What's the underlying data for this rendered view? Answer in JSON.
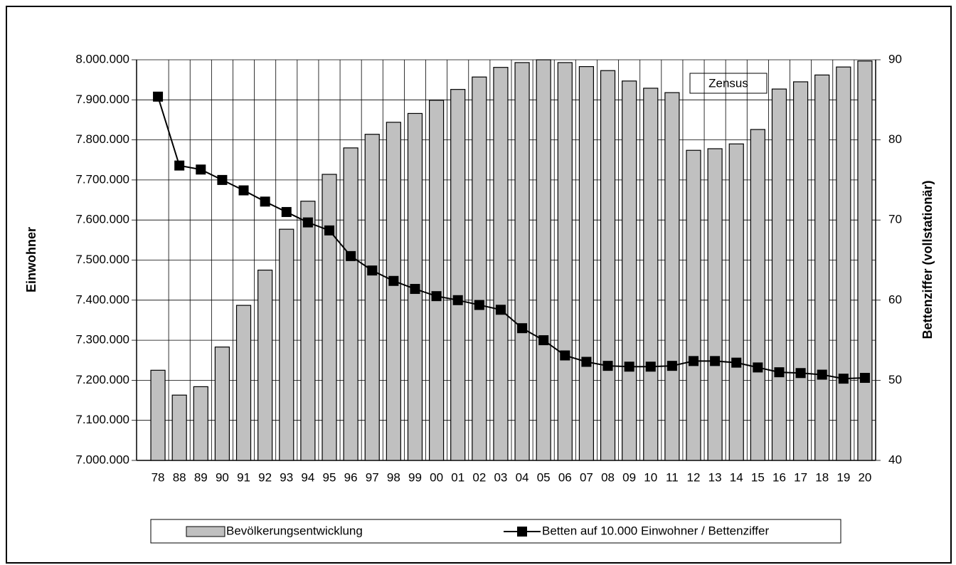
{
  "chart_data": {
    "type": "bar_line",
    "y_label": "Einwohner",
    "y2_label": "Bettenziffer (vollstationär)",
    "annotation": "Zensus",
    "categories": [
      "78",
      "88",
      "89",
      "90",
      "91",
      "92",
      "93",
      "94",
      "95",
      "96",
      "97",
      "98",
      "99",
      "00",
      "01",
      "02",
      "03",
      "04",
      "05",
      "06",
      "07",
      "08",
      "09",
      "10",
      "11",
      "12",
      "13",
      "14",
      "15",
      "16",
      "17",
      "18",
      "19",
      "20"
    ],
    "series": [
      {
        "name": "Bevölkerungsentwicklung",
        "kind": "bar",
        "color": "#c0c0c0",
        "values": [
          7225000,
          7163000,
          7184000,
          7283000,
          7387000,
          7475000,
          7577000,
          7647000,
          7714000,
          7780000,
          7814000,
          7844000,
          7866000,
          7899000,
          7926000,
          7957000,
          7981000,
          7993000,
          8000000,
          7993000,
          7983000,
          7973000,
          7947000,
          7929000,
          7918000,
          7774000,
          7778000,
          7790000,
          7826000,
          7927000,
          7945000,
          7962000,
          7982000,
          7997000
        ]
      },
      {
        "name": "Betten auf 10.000 Einwohner / Bettenziffer",
        "kind": "line",
        "axis": "y2",
        "color": "#000000",
        "values": [
          85.4,
          76.8,
          76.3,
          75.0,
          73.7,
          72.3,
          71.0,
          69.7,
          68.7,
          65.5,
          63.7,
          62.4,
          61.4,
          60.5,
          60.0,
          59.4,
          58.8,
          56.5,
          55.0,
          53.1,
          52.3,
          51.8,
          51.7,
          51.7,
          51.8,
          52.4,
          52.4,
          52.2,
          51.6,
          51.0,
          50.9,
          50.7,
          50.2,
          50.3
        ]
      }
    ],
    "ylim": [
      7000000,
      8000000
    ],
    "yticks": [
      {
        "value": 7000000,
        "label": "7.000.000"
      },
      {
        "value": 7100000,
        "label": "7.100.000"
      },
      {
        "value": 7200000,
        "label": "7.200.000"
      },
      {
        "value": 7300000,
        "label": "7.300.000"
      },
      {
        "value": 7400000,
        "label": "7.400.000"
      },
      {
        "value": 7500000,
        "label": "7.500.000"
      },
      {
        "value": 7600000,
        "label": "7.600.000"
      },
      {
        "value": 7700000,
        "label": "7.700.000"
      },
      {
        "value": 7800000,
        "label": "7.800.000"
      },
      {
        "value": 7900000,
        "label": "7.900.000"
      },
      {
        "value": 8000000,
        "label": "8.000.000"
      }
    ],
    "y2lim": [
      40,
      90
    ],
    "y2ticks": [
      40,
      50,
      60,
      70,
      80,
      90
    ],
    "grid": true,
    "legend": "bottom"
  }
}
